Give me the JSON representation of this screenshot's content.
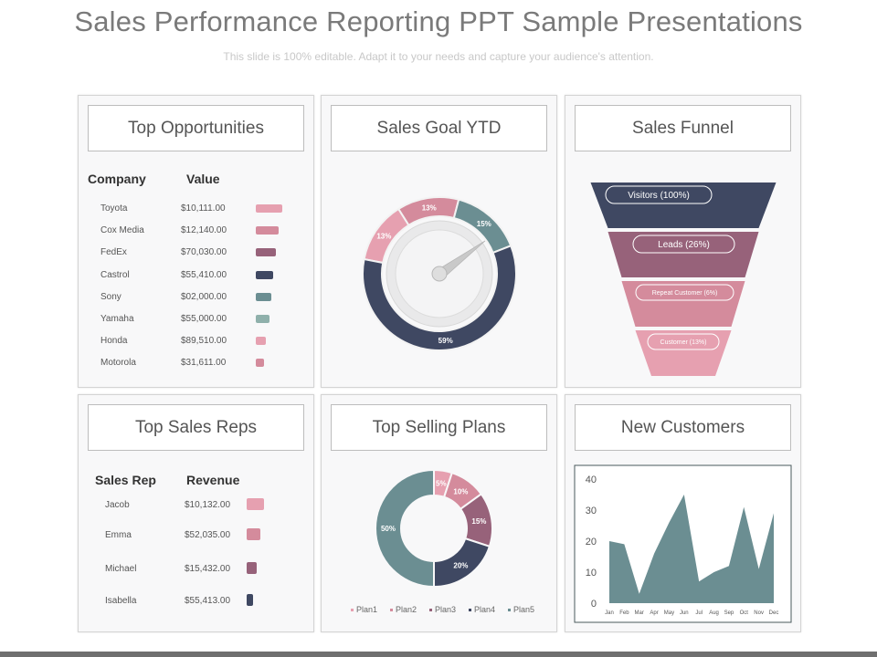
{
  "header": {
    "title": "Sales Performance Reporting PPT Sample Presentations",
    "subtitle": "This slide is 100% editable. Adapt it to your needs and capture your audience's attention."
  },
  "colors": {
    "pink_light": "#e6a0b0",
    "pink": "#d48b9c",
    "mauve": "#97627a",
    "navy": "#3f4862",
    "teal": "#6b8e92",
    "teal_light": "#8fb0ab"
  },
  "top_opportunities": {
    "title": "Top Opportunities",
    "col_company": "Company",
    "col_value": "Value",
    "rows": [
      {
        "company": "Toyota",
        "value": "$10,111.00",
        "bar": 0.95,
        "color": "#e6a0b0"
      },
      {
        "company": "Cox Media",
        "value": "$12,140.00",
        "bar": 0.83,
        "color": "#d48b9c"
      },
      {
        "company": "FedEx",
        "value": "$70,030.00",
        "bar": 0.72,
        "color": "#97627a"
      },
      {
        "company": "Castrol",
        "value": "$55,410.00",
        "bar": 0.62,
        "color": "#3f4862"
      },
      {
        "company": "Sony",
        "value": "$02,000.00",
        "bar": 0.58,
        "color": "#6b8e92"
      },
      {
        "company": "Yamaha",
        "value": "$55,000.00",
        "bar": 0.5,
        "color": "#8fb0ab"
      },
      {
        "company": "Honda",
        "value": "$89,510.00",
        "bar": 0.38,
        "color": "#e6a0b0"
      },
      {
        "company": "Motorola",
        "value": "$31,611.00",
        "bar": 0.3,
        "color": "#d48b9c"
      }
    ]
  },
  "sales_goal": {
    "title": "Sales Goal YTD",
    "segments": [
      {
        "label": "13%",
        "value": 13,
        "color": "#e6a0b0"
      },
      {
        "label": "13%",
        "value": 13,
        "color": "#d48b9c"
      },
      {
        "label": "15%",
        "value": 15,
        "color": "#6b8e92"
      },
      {
        "label": "59%",
        "value": 59,
        "color": "#3f4862"
      }
    ]
  },
  "sales_funnel": {
    "title": "Sales Funnel",
    "stages": [
      {
        "label": "Visitors (100%)",
        "color": "#3f4862"
      },
      {
        "label": "Leads (26%)",
        "color": "#97627a"
      },
      {
        "label": "Repeat Customer (6%)",
        "color": "#d48b9c"
      },
      {
        "label": "Customer (13%)",
        "color": "#e6a0b0"
      }
    ]
  },
  "top_sales_reps": {
    "title": "Top Sales Reps",
    "col_rep": "Sales Rep",
    "col_revenue": "Revenue",
    "rows": [
      {
        "rep": "Jacob",
        "revenue": "$10,132.00",
        "bar": 0.95,
        "color": "#e6a0b0"
      },
      {
        "rep": "Emma",
        "revenue": "$52,035.00",
        "bar": 0.75,
        "color": "#d48b9c"
      },
      {
        "rep": "Michael",
        "revenue": "$15,432.00",
        "bar": 0.55,
        "color": "#97627a"
      },
      {
        "rep": "Isabella",
        "revenue": "$55,413.00",
        "bar": 0.35,
        "color": "#3f4862"
      }
    ]
  },
  "top_selling_plans": {
    "title": "Top Selling Plans",
    "chart_data": {
      "type": "pie",
      "categories": [
        "Plan1",
        "Plan2",
        "Plan3",
        "Plan4",
        "Plan5"
      ],
      "values": [
        5,
        10,
        15,
        20,
        50
      ],
      "labels": [
        "5%",
        "10%",
        "15%",
        "20%",
        "50%"
      ],
      "colors": [
        "#e6a0b0",
        "#d48b9c",
        "#97627a",
        "#3f4862",
        "#6b8e92"
      ],
      "legend": "bottom"
    }
  },
  "new_customers": {
    "title": "New Customers",
    "chart_data": {
      "type": "area",
      "x": [
        "Jan",
        "Feb",
        "Mar",
        "Apr",
        "May",
        "Jun",
        "Jul",
        "Aug",
        "Sep",
        "Oct",
        "Nov",
        "Dec"
      ],
      "values": [
        20,
        19,
        3,
        16,
        26,
        35,
        7,
        10,
        12,
        31,
        11,
        29
      ],
      "ylim": [
        0,
        40
      ],
      "yticks": [
        "0",
        "10",
        "20",
        "30",
        "40"
      ],
      "color": "#6b8e92",
      "grid": false
    }
  }
}
